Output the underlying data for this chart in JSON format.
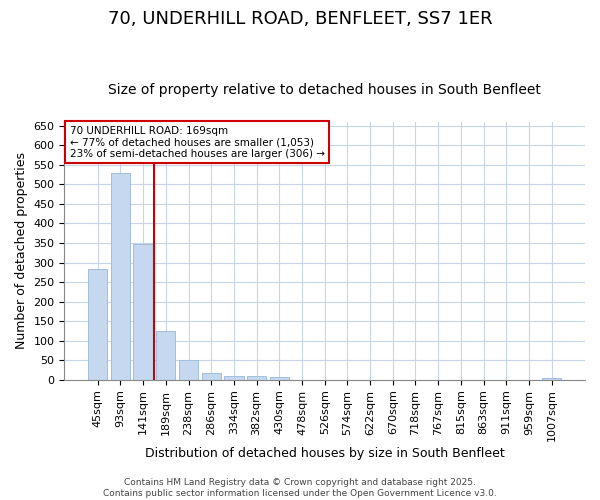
{
  "title1": "70, UNDERHILL ROAD, BENFLEET, SS7 1ER",
  "title2": "Size of property relative to detached houses in South Benfleet",
  "xlabel": "Distribution of detached houses by size in South Benfleet",
  "ylabel": "Number of detached properties",
  "categories": [
    "45sqm",
    "93sqm",
    "141sqm",
    "189sqm",
    "238sqm",
    "286sqm",
    "334sqm",
    "382sqm",
    "430sqm",
    "478sqm",
    "526sqm",
    "574sqm",
    "622sqm",
    "670sqm",
    "718sqm",
    "767sqm",
    "815sqm",
    "863sqm",
    "911sqm",
    "959sqm",
    "1007sqm"
  ],
  "values": [
    283,
    530,
    348,
    125,
    50,
    18,
    11,
    11,
    7,
    0,
    0,
    0,
    0,
    0,
    0,
    0,
    0,
    0,
    0,
    0,
    5
  ],
  "bar_color": "#c5d8f0",
  "bar_edge_color": "#a0bedd",
  "vline_x": 2.5,
  "vline_color": "#cc0000",
  "annotation_box_text": "70 UNDERHILL ROAD: 169sqm\n← 77% of detached houses are smaller (1,053)\n23% of semi-detached houses are larger (306) →",
  "annotation_box_color": "#cc0000",
  "ylim": [
    0,
    660
  ],
  "yticks": [
    0,
    50,
    100,
    150,
    200,
    250,
    300,
    350,
    400,
    450,
    500,
    550,
    600,
    650
  ],
  "footer": "Contains HM Land Registry data © Crown copyright and database right 2025.\nContains public sector information licensed under the Open Government Licence v3.0.",
  "fig_bg": "#ffffff",
  "plot_bg": "#ffffff",
  "grid_color": "#c8d4e8",
  "title_fontsize": 13,
  "subtitle_fontsize": 10,
  "tick_fontsize": 8,
  "label_fontsize": 9,
  "footer_fontsize": 6.5
}
